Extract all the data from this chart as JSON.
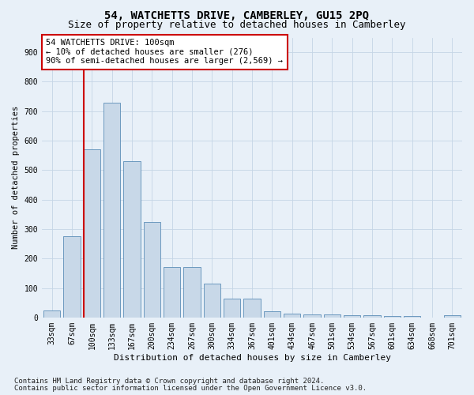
{
  "title": "54, WATCHETTS DRIVE, CAMBERLEY, GU15 2PQ",
  "subtitle": "Size of property relative to detached houses in Camberley",
  "xlabel": "Distribution of detached houses by size in Camberley",
  "ylabel": "Number of detached properties",
  "categories": [
    "33sqm",
    "67sqm",
    "100sqm",
    "133sqm",
    "167sqm",
    "200sqm",
    "234sqm",
    "267sqm",
    "300sqm",
    "334sqm",
    "367sqm",
    "401sqm",
    "434sqm",
    "467sqm",
    "501sqm",
    "534sqm",
    "567sqm",
    "601sqm",
    "634sqm",
    "668sqm",
    "701sqm"
  ],
  "values": [
    25,
    275,
    570,
    730,
    530,
    325,
    170,
    170,
    115,
    65,
    65,
    20,
    12,
    10,
    10,
    7,
    7,
    5,
    5,
    0,
    8
  ],
  "bar_color": "#c8d8e8",
  "bar_edge_color": "#5b8db8",
  "vline_color": "#cc0000",
  "vline_bar_index": 2,
  "annotation_text": "54 WATCHETTS DRIVE: 100sqm\n← 10% of detached houses are smaller (276)\n90% of semi-detached houses are larger (2,569) →",
  "annotation_box_color": "#ffffff",
  "annotation_box_edge_color": "#cc0000",
  "grid_color": "#c5d5e5",
  "background_color": "#e8f0f8",
  "ylim": [
    0,
    950
  ],
  "yticks": [
    0,
    100,
    200,
    300,
    400,
    500,
    600,
    700,
    800,
    900
  ],
  "footnote1": "Contains HM Land Registry data © Crown copyright and database right 2024.",
  "footnote2": "Contains public sector information licensed under the Open Government Licence v3.0.",
  "title_fontsize": 10,
  "subtitle_fontsize": 9,
  "xlabel_fontsize": 8,
  "ylabel_fontsize": 7.5,
  "tick_fontsize": 7,
  "annotation_fontsize": 7.5,
  "footnote_fontsize": 6.5
}
